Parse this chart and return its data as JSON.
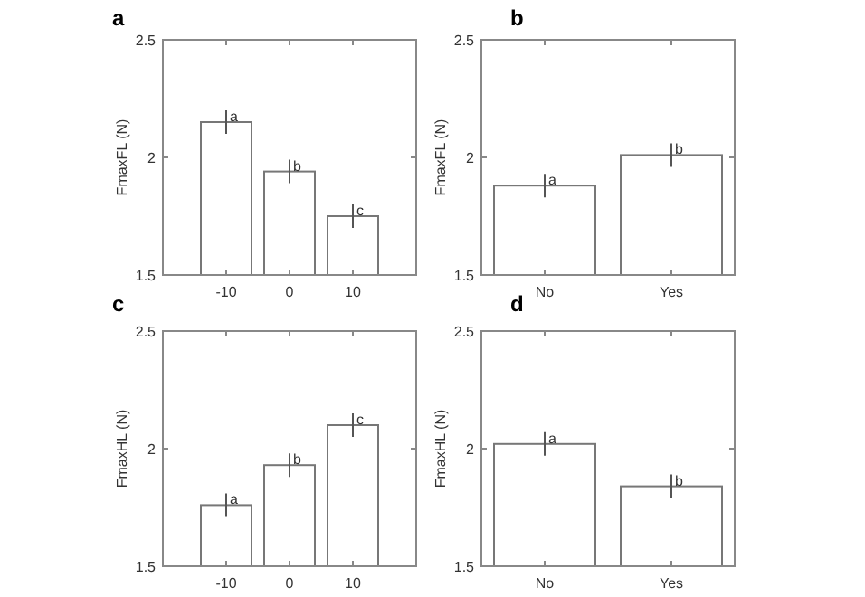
{
  "chart_data": [
    {
      "type": "bar",
      "title": "a",
      "ylabel": "FmaxFL (N)",
      "categories": [
        "-10",
        "0",
        "10"
      ],
      "values": [
        2.15,
        1.94,
        1.75
      ],
      "errors": [
        0.05,
        0.05,
        0.05
      ],
      "color": "#ffffff",
      "ylim": [
        1.5,
        2.5
      ],
      "yticks": [
        1.5,
        2,
        2.5
      ],
      "grid": false,
      "annotations": [
        {
          "text": "a",
          "x": "-10",
          "y": 2.2
        },
        {
          "text": "b",
          "x": "0",
          "y": 1.99
        },
        {
          "text": "c",
          "x": "10",
          "y": 1.8
        }
      ]
    },
    {
      "type": "bar",
      "title": "b",
      "ylabel": "FmaxFL (N)",
      "categories": [
        "No",
        "Yes"
      ],
      "values": [
        1.88,
        2.01
      ],
      "errors": [
        0.05,
        0.05
      ],
      "color": "#ffffff",
      "ylim": [
        1.5,
        2.5
      ],
      "yticks": [
        1.5,
        2,
        2.5
      ],
      "grid": false,
      "annotations": [
        {
          "text": "a",
          "x": "No",
          "y": 1.93
        },
        {
          "text": "b",
          "x": "Yes",
          "y": 2.06
        }
      ]
    },
    {
      "type": "bar",
      "title": "c",
      "ylabel": "FmaxHL (N)",
      "categories": [
        "-10",
        "0",
        "10"
      ],
      "values": [
        1.76,
        1.93,
        2.1
      ],
      "errors": [
        0.05,
        0.05,
        0.05
      ],
      "color": "#ffffff",
      "ylim": [
        1.5,
        2.5
      ],
      "yticks": [
        1.5,
        2,
        2.5
      ],
      "grid": false,
      "annotations": [
        {
          "text": "a",
          "x": "-10",
          "y": 1.81
        },
        {
          "text": "b",
          "x": "0",
          "y": 1.98
        },
        {
          "text": "c",
          "x": "10",
          "y": 2.15
        }
      ]
    },
    {
      "type": "bar",
      "title": "d",
      "ylabel": "FmaxHL (N)",
      "categories": [
        "No",
        "Yes"
      ],
      "values": [
        2.02,
        1.84
      ],
      "errors": [
        0.05,
        0.05
      ],
      "color": "#ffffff",
      "ylim": [
        1.5,
        2.5
      ],
      "yticks": [
        1.5,
        2,
        2.5
      ],
      "grid": false,
      "annotations": [
        {
          "text": "a",
          "x": "No",
          "y": 2.07
        },
        {
          "text": "b",
          "x": "Yes",
          "y": 1.89
        }
      ]
    }
  ]
}
